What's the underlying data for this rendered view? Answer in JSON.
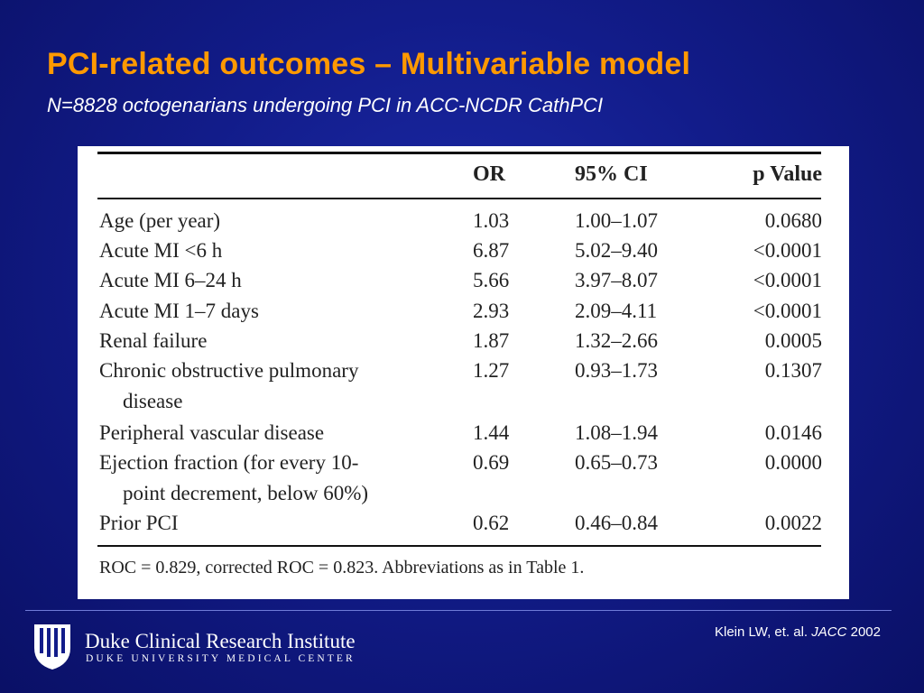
{
  "slide": {
    "title": "PCI-related outcomes – Multivariable model",
    "subtitle": "N=8828 octogenarians undergoing PCI in ACC-NCDR CathPCI"
  },
  "table": {
    "headers": {
      "or": "OR",
      "ci": "95% CI",
      "p": "p Value"
    },
    "rows": [
      {
        "variable": "Age (per year)",
        "or": "1.03",
        "ci": "1.00–1.07",
        "p": "0.0680"
      },
      {
        "variable": "Acute MI <6 h",
        "or": "6.87",
        "ci": "5.02–9.40",
        "p": "<0.0001"
      },
      {
        "variable": "Acute MI 6–24 h",
        "or": "5.66",
        "ci": "3.97–8.07",
        "p": "<0.0001"
      },
      {
        "variable": "Acute MI 1–7 days",
        "or": "2.93",
        "ci": "2.09–4.11",
        "p": "<0.0001"
      },
      {
        "variable": "Renal failure",
        "or": "1.87",
        "ci": "1.32–2.66",
        "p": "0.0005"
      },
      {
        "variable": "Chronic obstructive pulmonary",
        "variable_cont": "disease",
        "or": "1.27",
        "ci": "0.93–1.73",
        "p": "0.1307"
      },
      {
        "variable": "Peripheral vascular disease",
        "or": "1.44",
        "ci": "1.08–1.94",
        "p": "0.0146"
      },
      {
        "variable": "Ejection fraction (for every 10-",
        "variable_cont": "point decrement, below 60%)",
        "or": "0.69",
        "ci": "0.65–0.73",
        "p": "0.0000"
      },
      {
        "variable": "Prior PCI",
        "or": "0.62",
        "ci": "0.46–0.84",
        "p": "0.0022"
      }
    ],
    "footnote": "ROC = 0.829, corrected ROC = 0.823. Abbreviations as in Table 1."
  },
  "footer": {
    "institute": "Duke Clinical Research Institute",
    "center": "DUKE UNIVERSITY MEDICAL CENTER",
    "citation_authors": "Klein LW, et. al.",
    "citation_journal": "JACC",
    "citation_year": "2002"
  },
  "colors": {
    "title": "#ff9900",
    "background": "#121c8a",
    "text": "#ffffff"
  }
}
